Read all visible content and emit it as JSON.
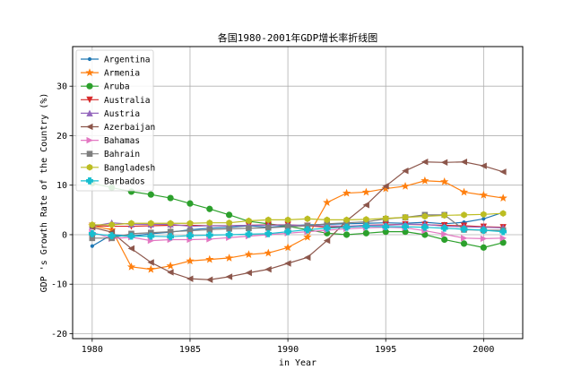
{
  "chart_data": {
    "type": "line",
    "title": "各国1980-2001年GDP增长率折线图",
    "xlabel": "in Year",
    "ylabel": "GDP 's Growth Rate of the Country (%)",
    "xlim": [
      1979,
      2002
    ],
    "ylim": [
      -21,
      38
    ],
    "xticks": [
      1980,
      1985,
      1990,
      1995,
      2000
    ],
    "yticks": [
      -20,
      -10,
      0,
      10,
      20,
      30
    ],
    "grid": true,
    "legend_position": "top-left",
    "x": [
      1980,
      1981,
      1982,
      1983,
      1984,
      1985,
      1986,
      1987,
      1988,
      1989,
      1990,
      1991,
      1992,
      1993,
      1994,
      1995,
      1996,
      1997,
      1998,
      1999,
      2000,
      2001
    ],
    "series": [
      {
        "name": "Argentina",
        "color": "#1f77b4",
        "marker": "point",
        "values": [
          -2.3,
          0.0,
          -0.3,
          0.2,
          0.5,
          1.0,
          1.3,
          1.5,
          1.8,
          1.5,
          1.8,
          2.0,
          2.1,
          2.2,
          2.3,
          2.4,
          2.3,
          2.5,
          2.2,
          2.5,
          3.2,
          4.5
        ]
      },
      {
        "name": "Armenia",
        "color": "#ff7f0e",
        "marker": "star",
        "values": [
          1.8,
          1.0,
          -6.5,
          -7.0,
          -6.3,
          -5.3,
          -5.0,
          -4.7,
          -4.0,
          -3.7,
          -2.6,
          -0.5,
          6.5,
          8.4,
          8.6,
          9.3,
          9.8,
          10.9,
          10.7,
          8.6,
          8.0,
          7.4
        ]
      },
      {
        "name": "Aruba",
        "color": "#2ca02c",
        "marker": "circle",
        "values": [
          10.4,
          9.5,
          8.7,
          8.1,
          7.4,
          6.3,
          5.2,
          4.0,
          2.7,
          2.2,
          1.7,
          1.0,
          0.3,
          0.0,
          0.3,
          0.6,
          0.6,
          0.0,
          -1.0,
          -1.8,
          -2.6,
          -1.6
        ]
      },
      {
        "name": "Australia",
        "color": "#d62728",
        "marker": "triangle-down",
        "values": [
          1.8,
          1.7,
          1.7,
          1.8,
          1.9,
          1.9,
          1.8,
          1.8,
          1.9,
          2.0,
          2.0,
          1.8,
          1.5,
          1.6,
          1.9,
          2.0,
          2.1,
          2.0,
          1.9,
          1.8,
          1.6,
          1.5
        ]
      },
      {
        "name": "Austria",
        "color": "#9467bd",
        "marker": "triangle-up",
        "values": [
          1.7,
          2.4,
          2.1,
          2.1,
          2.1,
          1.7,
          1.8,
          1.8,
          1.9,
          1.9,
          2.0,
          1.8,
          1.8,
          1.7,
          1.9,
          1.9,
          2.1,
          2.1,
          1.7,
          1.6,
          1.5,
          1.4
        ]
      },
      {
        "name": "Azerbaijan",
        "color": "#8c564b",
        "marker": "triangle-left",
        "values": [
          1.5,
          0.5,
          -2.8,
          -5.6,
          -7.6,
          -8.9,
          -9.1,
          -8.5,
          -7.7,
          -7.0,
          -5.8,
          -4.6,
          -1.2,
          2.8,
          6.0,
          9.8,
          12.9,
          14.7,
          14.6,
          14.7,
          13.9,
          12.7
        ]
      },
      {
        "name": "Bahamas",
        "color": "#e377c2",
        "marker": "triangle-right",
        "values": [
          0.5,
          -0.8,
          -0.5,
          -1.2,
          -1.0,
          -1.0,
          -0.9,
          -0.6,
          -0.3,
          0.0,
          0.3,
          0.6,
          0.9,
          1.2,
          1.4,
          1.5,
          1.4,
          0.8,
          0.1,
          -0.7,
          -0.8,
          -0.7
        ]
      },
      {
        "name": "Bahrain",
        "color": "#7f7f7f",
        "marker": "square",
        "values": [
          -0.7,
          -0.7,
          0.2,
          0.4,
          0.6,
          0.8,
          1.0,
          1.2,
          1.3,
          1.4,
          1.6,
          1.8,
          2.2,
          2.4,
          2.6,
          3.2,
          3.5,
          4.0,
          4.0,
          1.0,
          0.9,
          0.9
        ]
      },
      {
        "name": "Bangladesh",
        "color": "#bcbd22",
        "marker": "hexagon",
        "values": [
          2.0,
          2.0,
          2.3,
          2.3,
          2.3,
          2.3,
          2.4,
          2.4,
          2.8,
          3.0,
          3.0,
          3.2,
          3.0,
          3.0,
          3.1,
          3.3,
          3.5,
          3.7,
          3.9,
          4.0,
          4.1,
          4.3
        ]
      },
      {
        "name": "Barbados",
        "color": "#17becf",
        "marker": "plus",
        "values": [
          0.2,
          -0.2,
          -0.3,
          -0.3,
          -0.4,
          -0.2,
          -0.1,
          0.0,
          0.1,
          0.2,
          0.6,
          1.0,
          1.3,
          1.5,
          1.7,
          1.6,
          1.6,
          1.5,
          1.3,
          1.1,
          0.9,
          0.6
        ]
      }
    ]
  }
}
